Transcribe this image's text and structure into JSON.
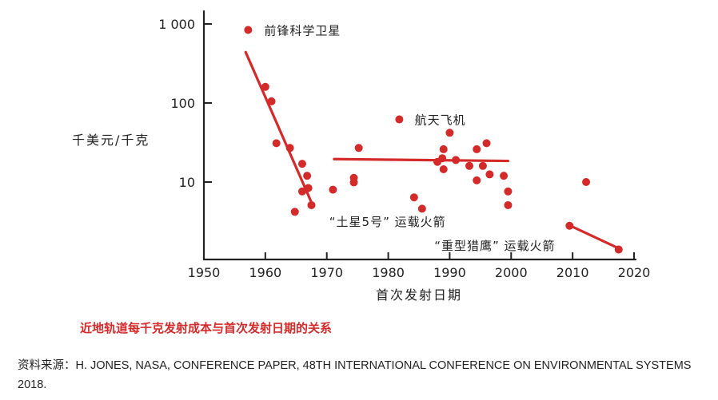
{
  "chart_data": {
    "type": "scatter",
    "ylabel": "千美元/千克",
    "xlabel": "首次发射日期",
    "xlim": [
      1950,
      2020
    ],
    "ylim": [
      1,
      1000
    ],
    "y_scale": "log",
    "grid": false,
    "x_ticks": [
      "1950",
      "1960",
      "1970",
      "1980",
      "1990",
      "2000",
      "2010",
      "2020"
    ],
    "y_ticks": [
      {
        "value": 1000,
        "label": "1 000"
      },
      {
        "value": 100,
        "label": "100"
      },
      {
        "value": 10,
        "label": "10"
      }
    ],
    "points": [
      {
        "x": 1957.2,
        "y": 840
      },
      {
        "x": 1960.0,
        "y": 160
      },
      {
        "x": 1961.0,
        "y": 105
      },
      {
        "x": 1961.8,
        "y": 31
      },
      {
        "x": 1964.0,
        "y": 27
      },
      {
        "x": 1964.8,
        "y": 4.2
      },
      {
        "x": 1966.0,
        "y": 17
      },
      {
        "x": 1966.8,
        "y": 12
      },
      {
        "x": 1967.0,
        "y": 8.4
      },
      {
        "x": 1966.0,
        "y": 7.6
      },
      {
        "x": 1967.5,
        "y": 5.1
      },
      {
        "x": 1971.0,
        "y": 8.0
      },
      {
        "x": 1974.4,
        "y": 11.3
      },
      {
        "x": 1974.4,
        "y": 9.9
      },
      {
        "x": 1975.2,
        "y": 27
      },
      {
        "x": 1981.8,
        "y": 62
      },
      {
        "x": 1984.2,
        "y": 6.4
      },
      {
        "x": 1985.5,
        "y": 4.6
      },
      {
        "x": 1988.0,
        "y": 18
      },
      {
        "x": 1988.8,
        "y": 20
      },
      {
        "x": 1989.0,
        "y": 26
      },
      {
        "x": 1989.0,
        "y": 14.5
      },
      {
        "x": 1990.0,
        "y": 42
      },
      {
        "x": 1991.0,
        "y": 19
      },
      {
        "x": 1993.2,
        "y": 16
      },
      {
        "x": 1994.4,
        "y": 26
      },
      {
        "x": 1994.4,
        "y": 10.5
      },
      {
        "x": 1995.4,
        "y": 16
      },
      {
        "x": 1996.0,
        "y": 31
      },
      {
        "x": 1996.5,
        "y": 12.5
      },
      {
        "x": 1998.8,
        "y": 12
      },
      {
        "x": 1999.5,
        "y": 7.6
      },
      {
        "x": 1999.5,
        "y": 5.1
      },
      {
        "x": 2012.2,
        "y": 10
      },
      {
        "x": 2009.5,
        "y": 2.8
      },
      {
        "x": 2017.5,
        "y": 1.4
      }
    ],
    "trend_lines": [
      {
        "x": [
          1956.8,
          1967.8
        ],
        "y": [
          440,
          4.9
        ]
      },
      {
        "x": [
          1971.2,
          1999.5
        ],
        "y": [
          19.5,
          18.5
        ]
      },
      {
        "x": [
          2009.2,
          2017.5
        ],
        "y": [
          2.9,
          1.45
        ]
      }
    ],
    "annotations": [
      {
        "text": "前锋科学卫星",
        "x": 1959.8,
        "y": 840,
        "anchor": "start"
      },
      {
        "text": "航天飞机",
        "x": 1984.3,
        "y": 62,
        "anchor": "start"
      },
      {
        "text": "“土星5号” 运载火箭",
        "x": 1970.4,
        "y": 3.2,
        "anchor": "start"
      },
      {
        "text": "“重型猎鹰” 运载火箭",
        "x": 1987.5,
        "y": 1.6,
        "anchor": "start"
      }
    ],
    "point_color": "#d42a2a",
    "axis_color": "#222222"
  },
  "caption": "近地轨道每千克发射成本与首次发射日期的关系",
  "source": "资料来源：H. JONES, NASA, CONFERENCE PAPER, 48TH INTERNATIONAL CONFERENCE ON ENVIRONMENTAL SYSTEMS 2018."
}
